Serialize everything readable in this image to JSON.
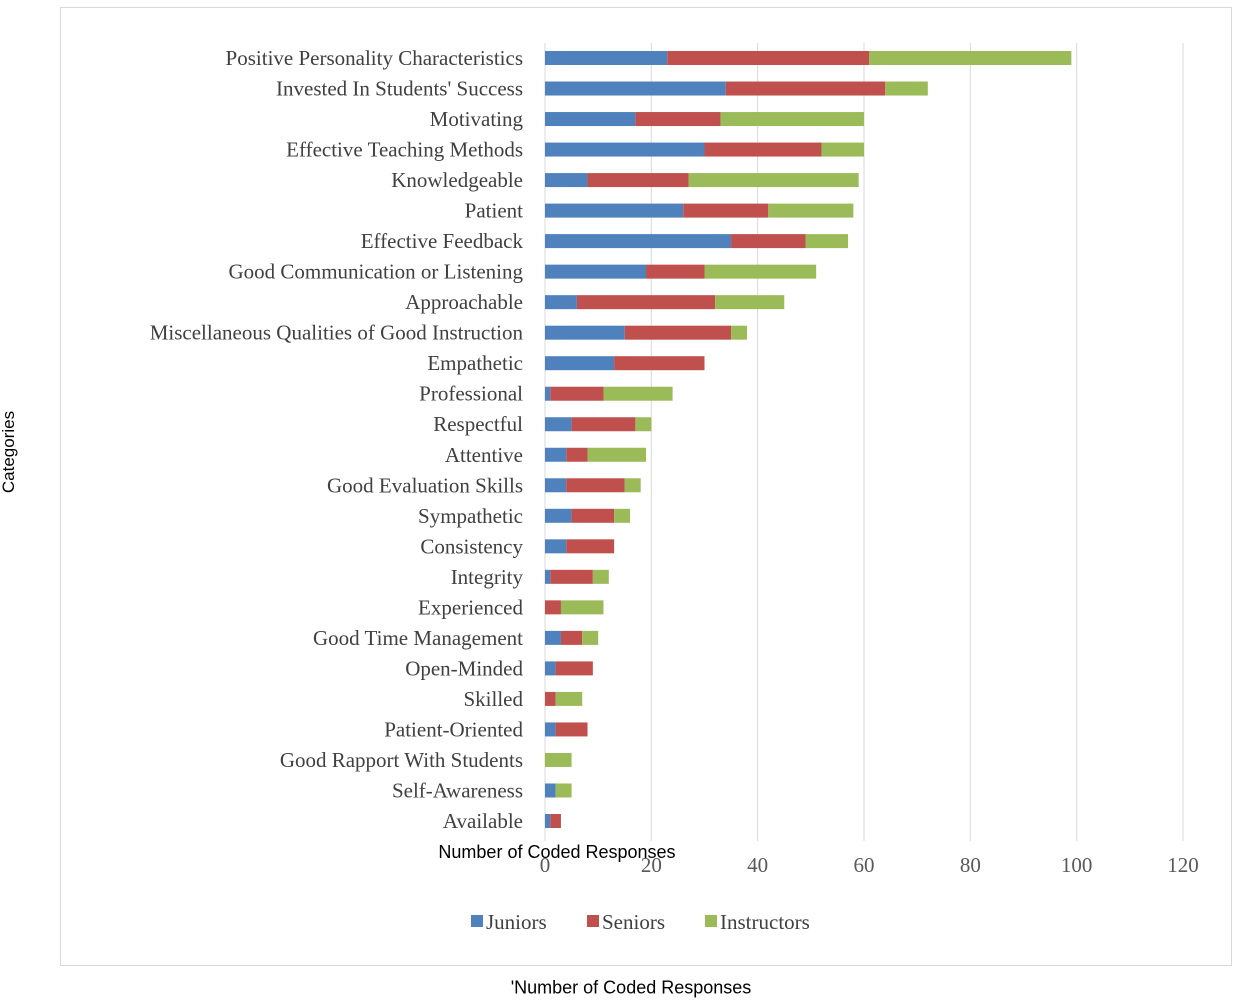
{
  "chart_data": {
    "type": "bar",
    "orientation": "horizontal",
    "stacked": true,
    "categories": [
      "Positive Personality Characteristics",
      "Invested In Students' Success",
      "Motivating",
      "Effective Teaching Methods",
      "Knowledgeable",
      "Patient",
      "Effective Feedback",
      "Good Communication or Listening",
      "Approachable",
      "Miscellaneous Qualities of Good Instruction",
      "Empathetic",
      "Professional",
      "Respectful",
      "Attentive",
      "Good Evaluation Skills",
      "Sympathetic",
      "Consistency",
      "Integrity",
      "Experienced",
      "Good Time Management",
      "Open-Minded",
      "Skilled",
      "Patient-Oriented",
      "Good Rapport With Students",
      "Self-Awareness",
      "Available"
    ],
    "series": [
      {
        "name": "Juniors",
        "color": "#4f81bd",
        "values": [
          23,
          34,
          17,
          30,
          8,
          26,
          35,
          19,
          6,
          15,
          13,
          1,
          5,
          4,
          4,
          5,
          4,
          1,
          0,
          3,
          2,
          0,
          2,
          0,
          2,
          1
        ]
      },
      {
        "name": "Seniors",
        "color": "#c0504d",
        "values": [
          38,
          30,
          16,
          22,
          19,
          16,
          14,
          11,
          26,
          20,
          17,
          10,
          12,
          4,
          11,
          8,
          9,
          8,
          3,
          4,
          7,
          2,
          6,
          0,
          0,
          2
        ]
      },
      {
        "name": "Instructors",
        "color": "#9bbb59",
        "values": [
          38,
          8,
          27,
          8,
          32,
          16,
          8,
          21,
          13,
          3,
          0,
          13,
          3,
          11,
          3,
          3,
          0,
          3,
          8,
          3,
          0,
          5,
          0,
          5,
          3,
          0
        ]
      }
    ],
    "xticks": [
      "0",
      "20",
      "40",
      "60",
      "80",
      "100",
      "120"
    ],
    "xlim": [
      0,
      120
    ],
    "inner_xlabel": "Number of Coded Responses",
    "outer_xlabel": "'Number of Coded Responses",
    "ylabel": "Categories",
    "grid": "vertical",
    "legend_position": "bottom"
  }
}
